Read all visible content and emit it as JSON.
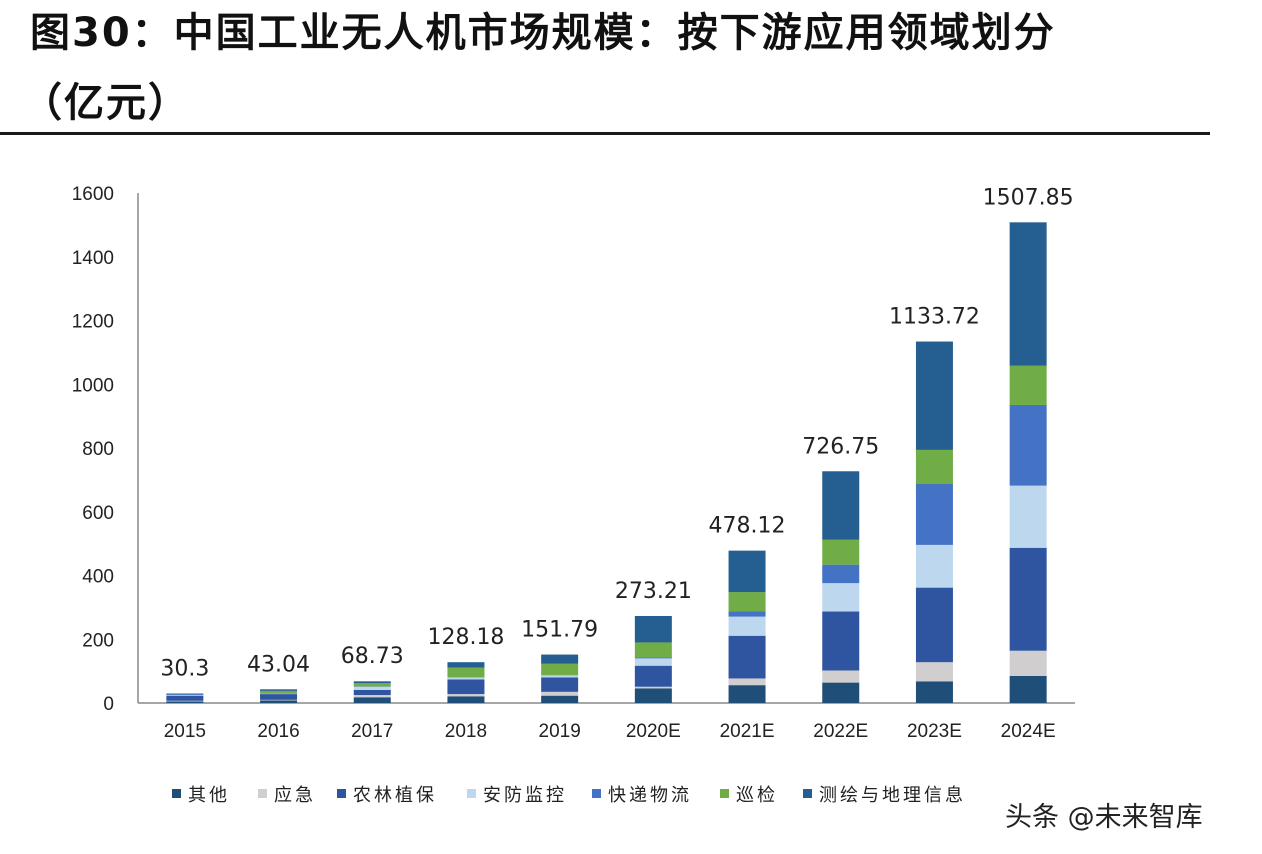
{
  "chart_data": {
    "type": "bar",
    "stacked": true,
    "title": "图30：中国工业无人机市场规模：按下游应用领域划分",
    "subtitle": "（亿元）",
    "categories": [
      "2015",
      "2016",
      "2017",
      "2018",
      "2019",
      "2020E",
      "2021E",
      "2022E",
      "2023E",
      "2024E"
    ],
    "totals": [
      "30.3",
      "43.04",
      "68.73",
      "128.18",
      "151.79",
      "273.21",
      "478.12",
      "726.75",
      "1133.72",
      "1507.85"
    ],
    "ylim": [
      0,
      1600
    ],
    "yticks": [
      "0",
      "200",
      "400",
      "600",
      "800",
      "1000",
      "1200",
      "1400",
      "1600"
    ],
    "grid": false,
    "legend_position": "bottom",
    "series": [
      {
        "name": "其他",
        "color": "#1f4e79",
        "values": [
          5,
          8,
          18,
          21,
          23,
          46,
          56,
          64,
          68,
          85
        ]
      },
      {
        "name": "应急",
        "color": "#d0cece",
        "values": [
          2,
          2,
          7,
          7,
          12,
          5,
          21,
          38,
          60,
          79
        ]
      },
      {
        "name": "农林植保",
        "color": "#2f55a0",
        "values": [
          16,
          18,
          16,
          46,
          45,
          66,
          134,
          185,
          234,
          323
        ]
      },
      {
        "name": "安防监控",
        "color": "#bdd7ee",
        "values": [
          2,
          1,
          10,
          6,
          7,
          23,
          60,
          89,
          134,
          195
        ]
      },
      {
        "name": "快递物流",
        "color": "#4472c4",
        "values": [
          3,
          1,
          1,
          1,
          1,
          3,
          16,
          58,
          191,
          253
        ]
      },
      {
        "name": "巡检",
        "color": "#70ad47",
        "values": [
          1,
          8,
          10,
          30,
          35,
          47,
          61,
          78,
          107,
          123
        ]
      },
      {
        "name": "测绘与地理信息",
        "color": "#255e91",
        "values": [
          1.3,
          5,
          6,
          17,
          29,
          83,
          130,
          215,
          340,
          450
        ]
      }
    ]
  },
  "watermark": "头条 @未来智库"
}
